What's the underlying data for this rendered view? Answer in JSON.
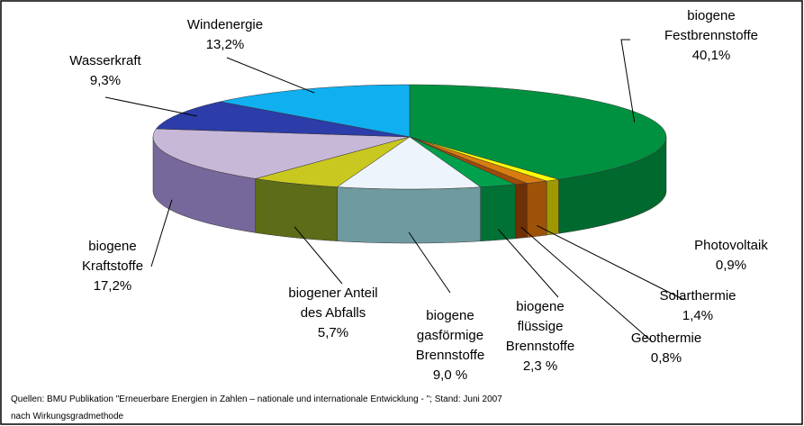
{
  "chart_data": {
    "type": "pie3d",
    "categories": [
      "biogene\nFestbrennstoffe",
      "Photovoltaik",
      "Solarthermie",
      "Geothermie",
      "biogene\nflüssige\nBrennstoffe",
      "biogene\ngasförmige\nBrennstoffe",
      "biogener Anteil\ndes Abfalls",
      "biogene\nKraftstoffe",
      "Wasserkraft",
      "Windenergie"
    ],
    "values": [
      40.1,
      0.9,
      1.4,
      0.8,
      2.3,
      9.0,
      5.7,
      17.2,
      9.3,
      13.2
    ],
    "value_labels": [
      "40,1%",
      "0,9%",
      "1,4%",
      "0,8%",
      "2,3 %",
      "9,0 %",
      "5,7%",
      "17,2%",
      "9,3%",
      "13,2%"
    ],
    "colors": [
      "#009140",
      "#ffff00",
      "#d87c10",
      "#a04a08",
      "#00a04c",
      "#eef4fc",
      "#c8c820",
      "#c8b8d8",
      "#2c3ca8",
      "#10b0f0"
    ],
    "side_colors": [
      "#006a2e",
      "#a09800",
      "#9c5208",
      "#6e3004",
      "#007236",
      "#6f9aa0",
      "#5c6c18",
      "#76689a",
      "#1c2878",
      "#0a80b0"
    ],
    "notes": [
      "Quellen: BMU Publikation \"Erneuerbare Energien in Zahlen – nationale und internationale Entwicklung - \"; Stand: Juni 2007",
      "nach Wirkungsgradmethode"
    ]
  }
}
